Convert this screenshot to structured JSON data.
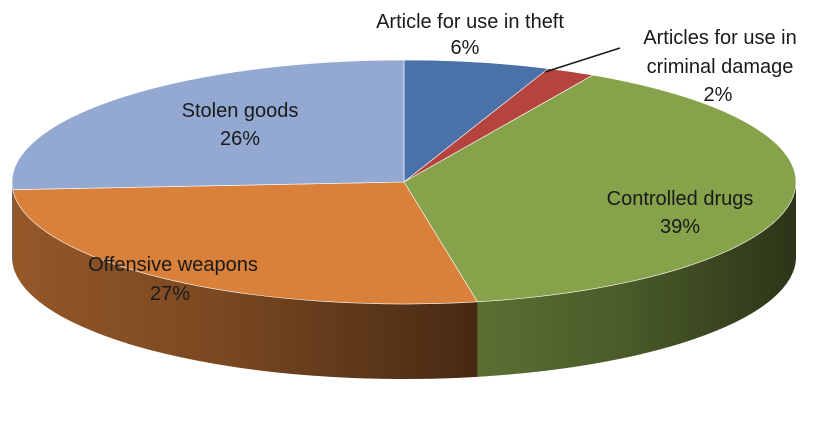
{
  "chart_data": {
    "type": "pie",
    "style": "3d",
    "title": "",
    "start_angle_deg": 90,
    "direction": "clockwise",
    "slices": [
      {
        "label": "Article for use in theft",
        "value": 6,
        "value_label": "6%",
        "color": "#4a72a8"
      },
      {
        "label": "Articles for use in criminal damage",
        "value": 2,
        "value_label": "2%",
        "color": "#b5443f"
      },
      {
        "label": "Controlled drugs",
        "value": 39,
        "value_label": "39%",
        "color": "#86a24a"
      },
      {
        "label": "Offensive weapons",
        "value": 27,
        "value_label": "27%",
        "color": "#d9803a"
      },
      {
        "label": "Stolen goods",
        "value": 26,
        "value_label": "26%",
        "color": "#93a9d2"
      }
    ]
  },
  "labels": {
    "theft_name": "Article for use in theft",
    "theft_pct": "6%",
    "damage_line1": "Articles for use in",
    "damage_line2": "criminal damage",
    "damage_pct": "2%",
    "drugs_name": "Controlled drugs",
    "drugs_pct": "39%",
    "weapons_name": "Offensive weapons",
    "weapons_pct": "27%",
    "stolen_name": "Stolen goods",
    "stolen_pct": "26%"
  }
}
